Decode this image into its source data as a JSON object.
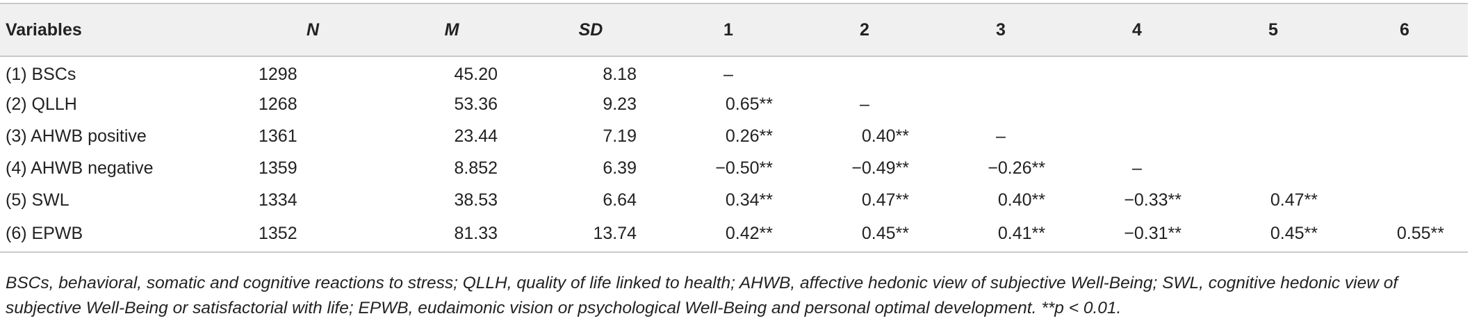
{
  "table": {
    "headers": [
      "Variables",
      "N",
      "M",
      "SD",
      "1",
      "2",
      "3",
      "4",
      "5",
      "6"
    ],
    "rows": [
      {
        "variable": "(1) BSCs",
        "N": "1298",
        "M": "45.20",
        "SD": "8.18",
        "c1": "–",
        "c2": "",
        "c3": "",
        "c4": "",
        "c5": "",
        "c6": ""
      },
      {
        "variable": "(2) QLLH",
        "N": "1268",
        "M": "53.36",
        "SD": "9.23",
        "c1": "0.65**",
        "c2": "–",
        "c3": "",
        "c4": "",
        "c5": "",
        "c6": ""
      },
      {
        "variable": "(3) AHWB positive",
        "N": "1361",
        "M": "23.44",
        "SD": "7.19",
        "c1": "0.26**",
        "c2": "0.40**",
        "c3": "–",
        "c4": "",
        "c5": "",
        "c6": ""
      },
      {
        "variable": "(4) AHWB negative",
        "N": "1359",
        "M": "8.852",
        "SD": "6.39",
        "c1": "−0.50**",
        "c2": "−0.49**",
        "c3": "−0.26**",
        "c4": "–",
        "c5": "",
        "c6": ""
      },
      {
        "variable": "(5) SWL",
        "N": "1334",
        "M": "38.53",
        "SD": "6.64",
        "c1": "0.34**",
        "c2": "0.47**",
        "c3": "0.40**",
        "c4": "−0.33**",
        "c5": "0.47**",
        "c6": ""
      },
      {
        "variable": "(6) EPWB",
        "N": "1352",
        "M": "81.33",
        "SD": "13.74",
        "c1": "0.42**",
        "c2": "0.45**",
        "c3": "0.41**",
        "c4": "−0.31**",
        "c5": "0.45**",
        "c6": "0.55**"
      }
    ]
  },
  "note": "BSCs, behavioral, somatic and cognitive reactions to stress; QLLH, quality of life linked to health; AHWB, affective hedonic view of subjective Well-Being; SWL, cognitive hedonic view of subjective Well-Being or satisfactorial with life; EPWB, eudaimonic vision or psychological Well-Being and personal optimal development. **p < 0.01."
}
